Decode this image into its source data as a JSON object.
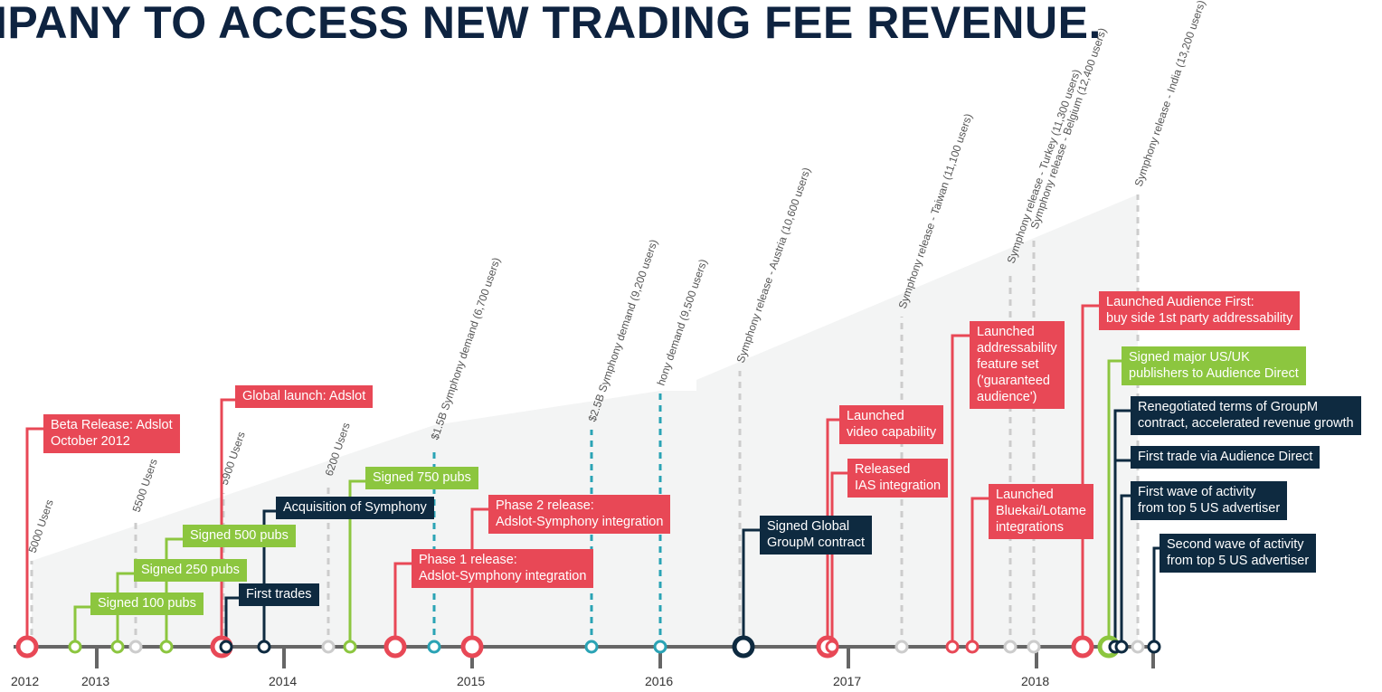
{
  "title": "IPANY TO ACCESS NEW TRADING FEE REVENUE.",
  "years": [
    "2012",
    "2013",
    "2014",
    "2015",
    "2016",
    "2017",
    "2018"
  ],
  "events": [
    {
      "label": "Beta Release: Adslot\nOctober 2012",
      "color": "#e84856"
    },
    {
      "label": "Signed 100 pubs",
      "color": "#8cc63f"
    },
    {
      "label": "Signed 250 pubs",
      "color": "#8cc63f"
    },
    {
      "label": "Signed 500 pubs",
      "color": "#8cc63f"
    },
    {
      "label": "Global launch: Adslot",
      "color": "#e84856"
    },
    {
      "label": "First trades",
      "color": "#0e2a40"
    },
    {
      "label": "Acquisition of Symphony",
      "color": "#0e2a40"
    },
    {
      "label": "Signed 750 pubs",
      "color": "#8cc63f"
    },
    {
      "label": "Phase 1 release:\nAdslot-Symphony integration",
      "color": "#e84856"
    },
    {
      "label": "Phase 2 release:\nAdslot-Symphony integration",
      "color": "#e84856"
    },
    {
      "label": "Signed Global\nGroupM contract",
      "color": "#0e2a40"
    },
    {
      "label": "Launched\nvideo capability",
      "color": "#e84856"
    },
    {
      "label": "Released\nIAS integration",
      "color": "#e84856"
    },
    {
      "label": "Launched\naddressability\nfeature set\n('guaranteed\naudience')",
      "color": "#e84856"
    },
    {
      "label": "Launched\nBluekai/Lotame\nintegrations",
      "color": "#e84856"
    },
    {
      "label": "Launched Audience First:\nbuy side 1st party addressability",
      "color": "#e84856"
    },
    {
      "label": "Signed major US/UK\npublishers to Audience Direct",
      "color": "#8cc63f"
    },
    {
      "label": "Renegotiated terms of GroupM\ncontract, accelerated revenue growth",
      "color": "#0e2a40"
    },
    {
      "label": "First trade via Audience Direct",
      "color": "#0e2a40"
    },
    {
      "label": "First wave of activity\nfrom top 5 US advertiser",
      "color": "#0e2a40"
    },
    {
      "label": "Second wave of activity\nfrom top 5 US advertiser",
      "color": "#0e2a40"
    }
  ],
  "milestones": [
    {
      "label": "5000 Users",
      "color": "#cccccc"
    },
    {
      "label": "5500 Users",
      "color": "#cccccc"
    },
    {
      "label": "5900 Users",
      "color": "#cccccc"
    },
    {
      "label": "6200 Users",
      "color": "#cccccc"
    },
    {
      "label": "$1.5B Symphony demand (6,700 users)",
      "color": "#2aa3b5"
    },
    {
      "label": "$2.5B Symphony demand (9,200 users)",
      "color": "#2aa3b5"
    },
    {
      "label": "hony demand  (9,500 users)",
      "color": "#2aa3b5"
    },
    {
      "label": "Symphony release - Austria (10,600 users)",
      "color": "#cccccc"
    },
    {
      "label": "Symphony release - Taiwan (11,100 users)",
      "color": "#cccccc"
    },
    {
      "label": "Symphony release - Turkey (11,300 users)",
      "color": "#cccccc"
    },
    {
      "label": "Symphony release - Belgium (12,400 users)",
      "color": "#cccccc"
    },
    {
      "label": "Symphony release - India (13,200 users)",
      "color": "#cccccc"
    }
  ]
}
